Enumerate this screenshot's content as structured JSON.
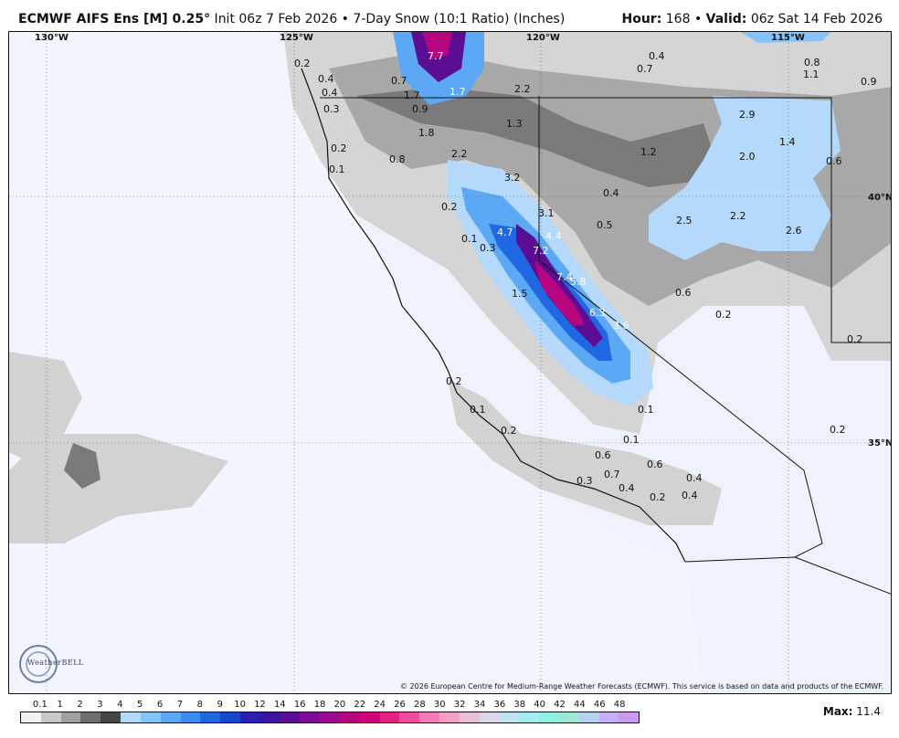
{
  "header": {
    "model": "ECMWF AIFS Ens [M] 0.25",
    "degree": "°",
    "init": " Init 06z 7 Feb 2026",
    "bullet": " • ",
    "product": "7-Day Snow (10:1 Ratio) (Inches)",
    "hour_label": "Hour:",
    "hour_value": " 168 ",
    "valid_label": "Valid:",
    "valid_value": " 06z Sat 14 Feb 2026"
  },
  "coords": {
    "lon130": "130°W",
    "lon125": "125°W",
    "lon120": "120°W",
    "lon115": "115°W",
    "lat40": "40°N",
    "lat35": "35°N"
  },
  "snow_labels": [
    {
      "text": "7.7",
      "dark": true
    },
    {
      "text": "0.2"
    },
    {
      "text": "0.4"
    },
    {
      "text": "0.7"
    },
    {
      "text": "0.4"
    },
    {
      "text": "1.7"
    },
    {
      "text": "1.7",
      "dark": true
    },
    {
      "text": "0.3"
    },
    {
      "text": "0.9"
    },
    {
      "text": "2.2"
    },
    {
      "text": "1.3"
    },
    {
      "text": "0.4"
    },
    {
      "text": "0.7"
    },
    {
      "text": "0.8"
    },
    {
      "text": "1.1"
    },
    {
      "text": "0.9"
    },
    {
      "text": "1.8"
    },
    {
      "text": "0.2"
    },
    {
      "text": "0.8"
    },
    {
      "text": "0.1"
    },
    {
      "text": "2.2"
    },
    {
      "text": "3.2"
    },
    {
      "text": "1.2"
    },
    {
      "text": "2.9"
    },
    {
      "text": "1.4"
    },
    {
      "text": "2.0"
    },
    {
      "text": "0.6"
    },
    {
      "text": "0.4"
    },
    {
      "text": "0.2"
    },
    {
      "text": "3.1"
    },
    {
      "text": "0.5"
    },
    {
      "text": "2.5"
    },
    {
      "text": "2.2"
    },
    {
      "text": "2.6"
    },
    {
      "text": "4.7",
      "dark": true
    },
    {
      "text": "4.4",
      "dark": true
    },
    {
      "text": "0.1"
    },
    {
      "text": "0.3"
    },
    {
      "text": "7.2",
      "dark": true
    },
    {
      "text": "7.4",
      "dark": true
    },
    {
      "text": "5.8",
      "dark": true
    },
    {
      "text": "1.5"
    },
    {
      "text": "0.6"
    },
    {
      "text": "0.2"
    },
    {
      "text": "6.3",
      "dark": true
    },
    {
      "text": "3.6",
      "dark": true
    },
    {
      "text": "0.2"
    },
    {
      "text": "0.2"
    },
    {
      "text": "0.1"
    },
    {
      "text": "0.1"
    },
    {
      "text": "0.2"
    },
    {
      "text": "0.1"
    },
    {
      "text": "0.2"
    },
    {
      "text": "0.6"
    },
    {
      "text": "0.6"
    },
    {
      "text": "0.7"
    },
    {
      "text": "0.3"
    },
    {
      "text": "0.4"
    },
    {
      "text": "0.4"
    },
    {
      "text": "0.2"
    },
    {
      "text": "0.4"
    }
  ],
  "copyright": "© 2026 European Centre for Medium-Range Weather Forecasts (ECMWF). This service is based on data and products of the ECMWF.",
  "logo_text": "WeatherBELL",
  "legend": {
    "ticks": [
      "0.1",
      "1",
      "2",
      "3",
      "4",
      "5",
      "6",
      "7",
      "8",
      "9",
      "10",
      "12",
      "14",
      "16",
      "18",
      "20",
      "22",
      "24",
      "26",
      "28",
      "30",
      "32",
      "34",
      "36",
      "38",
      "40",
      "42",
      "44",
      "46",
      "48"
    ],
    "colors": [
      "#f2f2f2",
      "#c8c8c8",
      "#a0a0a0",
      "#6e6e6e",
      "#454545",
      "#b4d9fb",
      "#87c2f9",
      "#5ca8f5",
      "#3a8cf0",
      "#2068e3",
      "#1846cc",
      "#2a1fb0",
      "#3b169c",
      "#5b0e93",
      "#7c0c96",
      "#9a0a8d",
      "#b5067f",
      "#d0057a",
      "#e61f86",
      "#ef4c9e",
      "#f47bb5",
      "#f2a0c4",
      "#e9c1d7",
      "#d8d8ec",
      "#bfe3f0",
      "#a4ecef",
      "#8ff0e6",
      "#9ee9d6",
      "#b6d0ef",
      "#c5b0f3",
      "#c99af0"
    ],
    "max_label": "Max:",
    "max_value": " 11.4"
  }
}
